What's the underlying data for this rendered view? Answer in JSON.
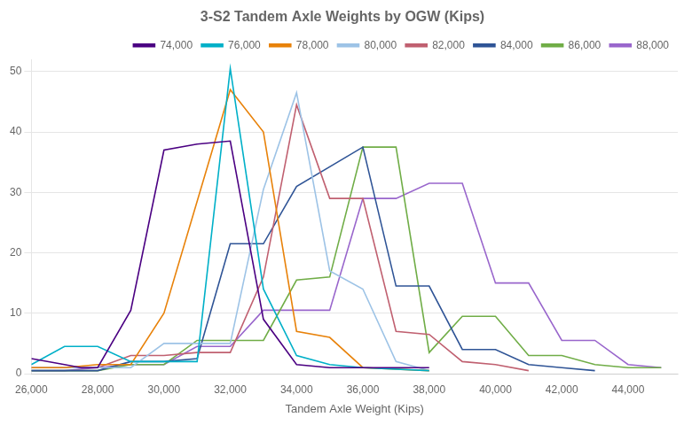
{
  "chart_data": {
    "type": "line",
    "title": "3-S2 Tandem Axle Weights by OGW (Kips)",
    "xlabel": "Tandem Axle Weight (Kips)",
    "xlim": [
      26000,
      45500
    ],
    "ylim": [
      0,
      52
    ],
    "xticks": [
      {
        "value": 26000,
        "label": "26,000"
      },
      {
        "value": 28000,
        "label": "28,000"
      },
      {
        "value": 30000,
        "label": "30,000"
      },
      {
        "value": 32000,
        "label": "32,000"
      },
      {
        "value": 34000,
        "label": "34,000"
      },
      {
        "value": 36000,
        "label": "36,000"
      },
      {
        "value": 38000,
        "label": "38,000"
      },
      {
        "value": 40000,
        "label": "40,000"
      },
      {
        "value": 42000,
        "label": "42,000"
      },
      {
        "value": 44000,
        "label": "44,000"
      }
    ],
    "yticks": [
      0,
      10,
      20,
      30,
      40,
      50
    ],
    "grid": "y",
    "legend": "upper right",
    "series": [
      {
        "name": "74,000",
        "color": "#4B0082",
        "x": [
          26000,
          27000,
          27500,
          28000,
          29000,
          30000,
          31000,
          32000,
          33000,
          34000,
          35000,
          36000,
          38000
        ],
        "values": [
          2.5,
          1.5,
          1.0,
          1.0,
          10.5,
          37.0,
          38.0,
          38.5,
          9.0,
          1.5,
          1.0,
          1.0,
          1.0
        ]
      },
      {
        "name": "76,000",
        "color": "#00B0C8",
        "x": [
          26000,
          27000,
          28000,
          29000,
          30000,
          31000,
          32000,
          33000,
          34000,
          35000,
          36000,
          38000
        ],
        "values": [
          1.5,
          4.5,
          4.5,
          2.0,
          2.0,
          2.0,
          50.5,
          14.0,
          3.0,
          1.5,
          1.0,
          0.5
        ]
      },
      {
        "name": "78,000",
        "color": "#E8820A",
        "x": [
          26000,
          27000,
          28000,
          29000,
          30000,
          32000,
          33000,
          34000,
          35000,
          36000,
          38000
        ],
        "values": [
          1.0,
          1.0,
          1.5,
          1.5,
          10.0,
          47.0,
          40.0,
          7.0,
          6.0,
          1.0,
          0.5
        ]
      },
      {
        "name": "80,000",
        "color": "#9DC3E6",
        "x": [
          26000,
          27000,
          28000,
          29000,
          30000,
          31000,
          32000,
          33000,
          34000,
          35000,
          36000,
          37000,
          38000
        ],
        "values": [
          1.0,
          1.0,
          1.0,
          1.0,
          5.0,
          5.0,
          5.0,
          30.5,
          46.5,
          17.0,
          14.0,
          2.0,
          0.5
        ]
      },
      {
        "name": "82,000",
        "color": "#C06070",
        "x": [
          26000,
          27000,
          28000,
          29000,
          30000,
          31000,
          32000,
          33000,
          34000,
          35000,
          36000,
          37000,
          38000,
          39000,
          40000,
          41000
        ],
        "values": [
          1.0,
          1.0,
          1.0,
          3.0,
          3.0,
          3.5,
          3.5,
          16.0,
          44.5,
          29.0,
          29.0,
          7.0,
          6.5,
          2.0,
          1.5,
          0.5
        ]
      },
      {
        "name": "84,000",
        "color": "#2F5496",
        "x": [
          26000,
          27000,
          28000,
          29000,
          30000,
          31000,
          32000,
          33000,
          34000,
          36000,
          37000,
          38000,
          39000,
          40000,
          41000,
          42000,
          43000
        ],
        "values": [
          0.5,
          0.5,
          0.5,
          2.0,
          2.0,
          2.5,
          21.5,
          21.5,
          31.0,
          37.5,
          14.5,
          14.5,
          4.0,
          4.0,
          1.5,
          1.0,
          0.5
        ]
      },
      {
        "name": "86,000",
        "color": "#70AD47",
        "x": [
          26000,
          27000,
          28000,
          29000,
          30000,
          31000,
          32000,
          33000,
          34000,
          35000,
          36000,
          37000,
          38000,
          39000,
          40000,
          41000,
          42000,
          43000,
          44000,
          45000
        ],
        "values": [
          0.5,
          0.5,
          0.5,
          1.5,
          1.5,
          5.5,
          5.5,
          5.5,
          15.5,
          16.0,
          37.5,
          37.5,
          3.5,
          9.5,
          9.5,
          3.0,
          3.0,
          1.5,
          1.0,
          1.0
        ]
      },
      {
        "name": "88,000",
        "color": "#9966CC",
        "x": [
          26000,
          27000,
          28000,
          29000,
          30000,
          31000,
          32000,
          33000,
          34000,
          35000,
          36000,
          37000,
          38000,
          39000,
          40000,
          41000,
          42000,
          43000,
          44000,
          45000
        ],
        "values": [
          0.5,
          0.5,
          1.0,
          1.5,
          1.5,
          4.5,
          4.5,
          10.5,
          10.5,
          10.5,
          29.0,
          29.0,
          31.5,
          31.5,
          15.0,
          15.0,
          5.5,
          5.5,
          1.5,
          1.0
        ]
      }
    ]
  }
}
